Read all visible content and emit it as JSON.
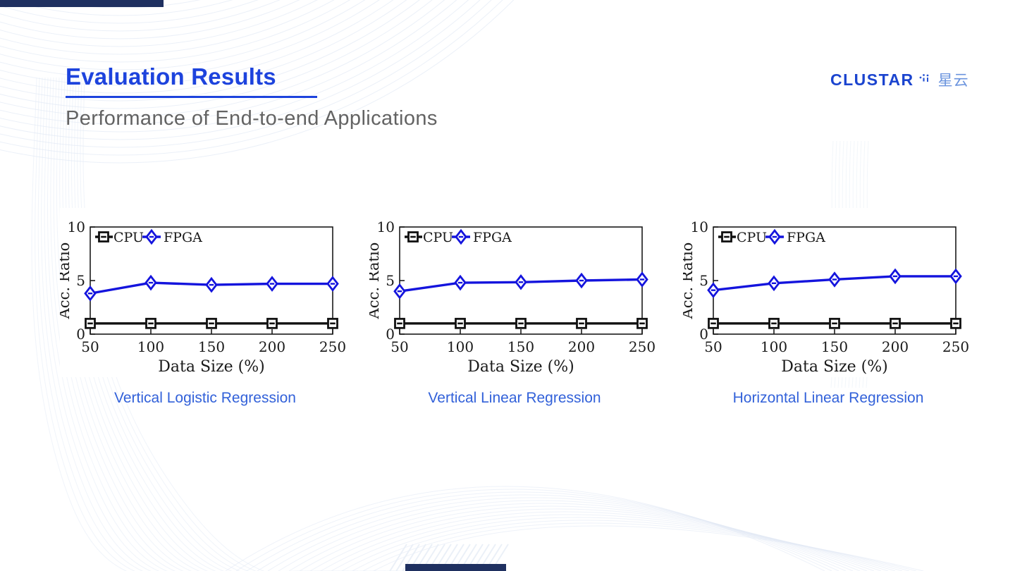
{
  "slide": {
    "title": "Evaluation Results",
    "subtitle": "Performance of End-to-end Applications"
  },
  "logo": {
    "brand": "CLUSTAR",
    "suffix": "星云"
  },
  "colors": {
    "title_blue": "#1d43dd",
    "caption_blue": "#3261d9",
    "accent_navy": "#1f3060",
    "cpu_series": "#111111",
    "fpga_series": "#1414dd"
  },
  "chart_data": [
    {
      "type": "line",
      "caption": "Vertical Logistic Regression",
      "xlabel": "Data Size (%)",
      "ylabel": "Acc.  Ratio",
      "x": [
        50,
        100,
        150,
        200,
        250
      ],
      "xticks": [
        50,
        100,
        150,
        200,
        250
      ],
      "xlim": [
        50,
        250
      ],
      "ylim": [
        0,
        10
      ],
      "yticks": [
        0,
        5,
        10
      ],
      "legend_position": "top-left-inside",
      "grid": false,
      "series": [
        {
          "name": "CPU",
          "marker": "square",
          "color": "#111111",
          "values": [
            1,
            1,
            1,
            1,
            1
          ]
        },
        {
          "name": "FPGA",
          "marker": "diamond",
          "color": "#1414dd",
          "values": [
            3.8,
            4.8,
            4.6,
            4.7,
            4.7
          ]
        }
      ]
    },
    {
      "type": "line",
      "caption": "Vertical Linear Regression",
      "xlabel": "Data Size (%)",
      "ylabel": "Acc.  Ratio",
      "x": [
        50,
        100,
        150,
        200,
        250
      ],
      "xticks": [
        50,
        100,
        150,
        200,
        250
      ],
      "xlim": [
        50,
        250
      ],
      "ylim": [
        0,
        10
      ],
      "yticks": [
        0,
        5,
        10
      ],
      "legend_position": "top-left-inside",
      "grid": false,
      "series": [
        {
          "name": "CPU",
          "marker": "square",
          "color": "#111111",
          "values": [
            1,
            1,
            1,
            1,
            1
          ]
        },
        {
          "name": "FPGA",
          "marker": "diamond",
          "color": "#1414dd",
          "values": [
            4.0,
            4.8,
            4.85,
            5.0,
            5.1
          ]
        }
      ]
    },
    {
      "type": "line",
      "caption": "Horizontal Linear Regression",
      "xlabel": "Data Size (%)",
      "ylabel": "Acc.  Ratio",
      "x": [
        50,
        100,
        150,
        200,
        250
      ],
      "xticks": [
        50,
        100,
        150,
        200,
        250
      ],
      "xlim": [
        50,
        250
      ],
      "ylim": [
        0,
        10
      ],
      "yticks": [
        0,
        5,
        10
      ],
      "legend_position": "top-left-inside",
      "grid": false,
      "series": [
        {
          "name": "CPU",
          "marker": "square",
          "color": "#111111",
          "values": [
            1,
            1,
            1,
            1,
            1
          ]
        },
        {
          "name": "FPGA",
          "marker": "diamond",
          "color": "#1414dd",
          "values": [
            4.1,
            4.75,
            5.1,
            5.4,
            5.4
          ]
        }
      ]
    }
  ]
}
